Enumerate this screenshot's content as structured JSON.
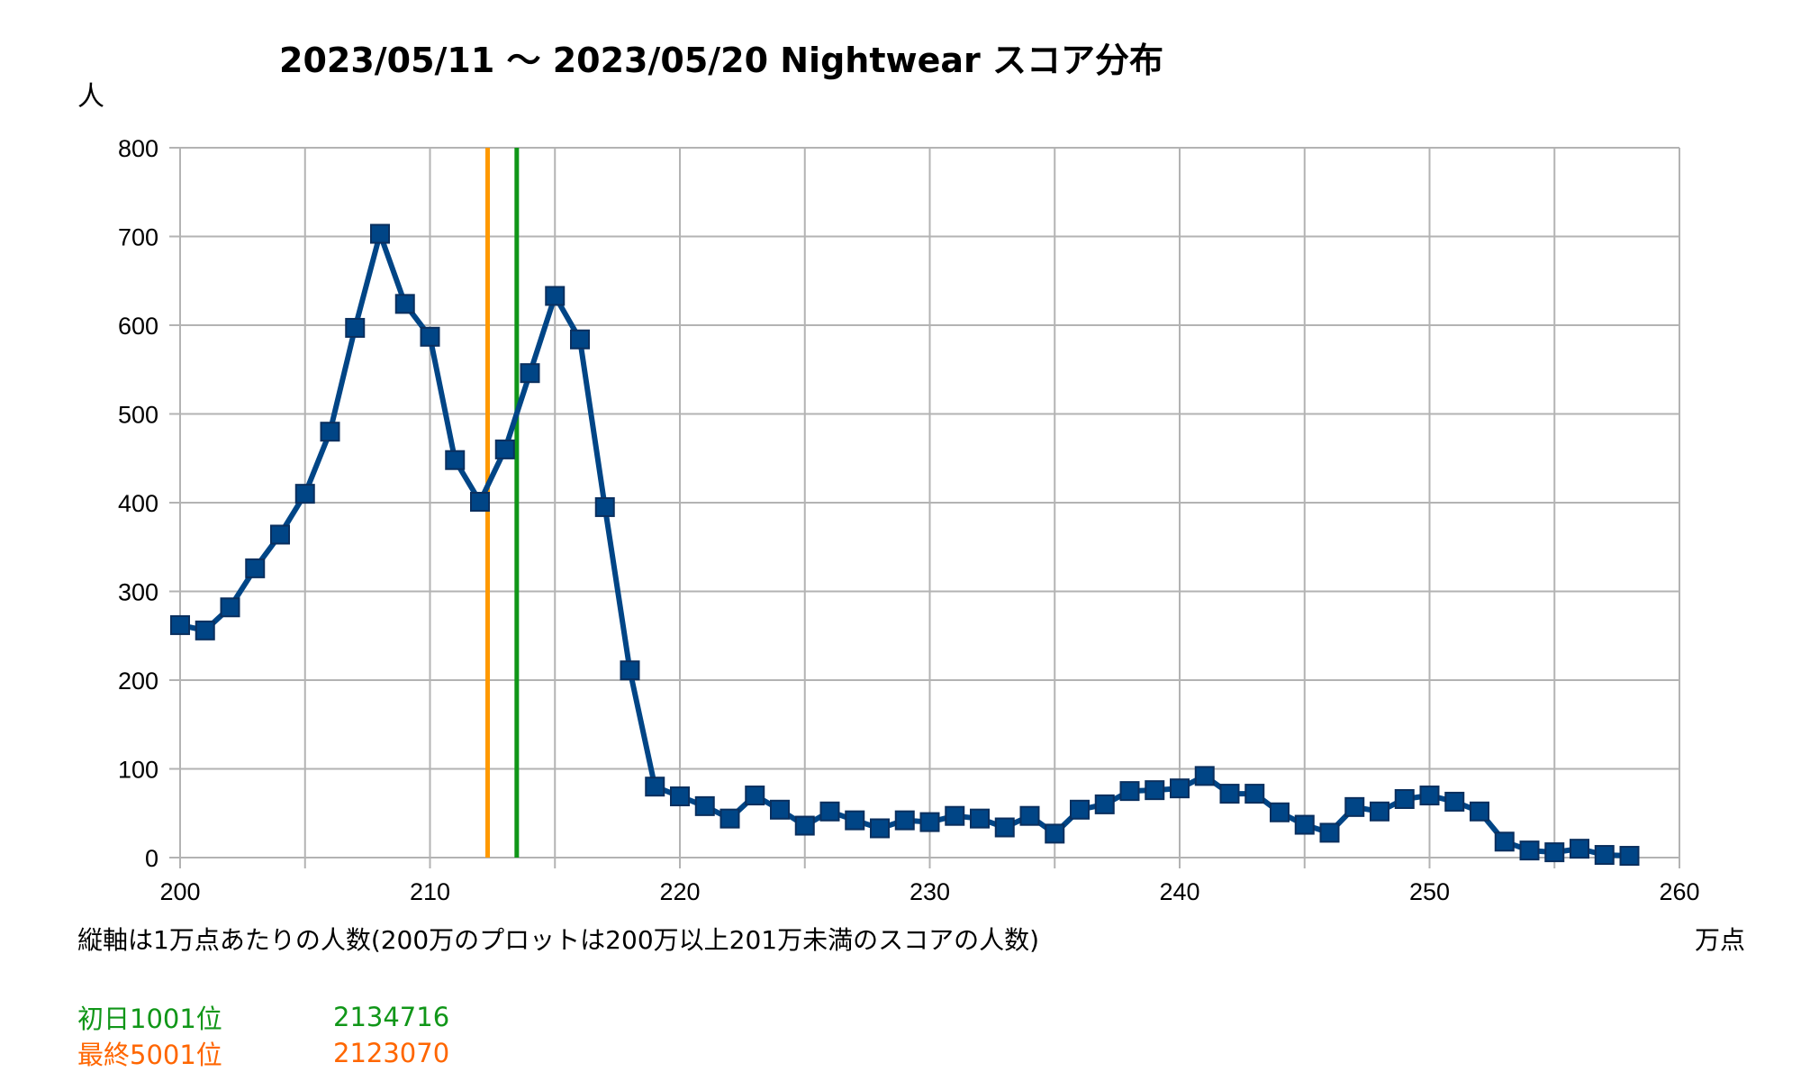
{
  "chart_data": {
    "type": "line",
    "title": "2023/05/11 〜 2023/05/20 Nightwear スコア分布",
    "ylabel": "人",
    "xlabel": "万点",
    "x_note": "縦軸は1万点あたりの人数(200万のプロットは200万以上201万未満のスコアの人数)",
    "xlim": [
      200,
      260
    ],
    "ylim": [
      0,
      800
    ],
    "x_ticks": [
      "200",
      "210",
      "220",
      "230",
      "240",
      "250",
      "260"
    ],
    "y_ticks": [
      "0",
      "100",
      "200",
      "300",
      "400",
      "500",
      "600",
      "700",
      "800"
    ],
    "grid": true,
    "x": [
      200,
      201,
      202,
      203,
      204,
      205,
      206,
      207,
      208,
      209,
      210,
      211,
      212,
      213,
      214,
      215,
      216,
      217,
      218,
      219,
      220,
      221,
      222,
      223,
      224,
      225,
      226,
      227,
      228,
      229,
      230,
      231,
      232,
      233,
      234,
      235,
      236,
      237,
      238,
      239,
      240,
      241,
      242,
      243,
      244,
      245,
      246,
      247,
      248,
      249,
      250,
      251,
      252,
      253,
      254,
      255,
      256,
      257,
      258
    ],
    "series": [
      {
        "color": "#004586",
        "values": [
          262,
          256,
          282,
          326,
          364,
          410,
          480,
          597,
          703,
          624,
          587,
          448,
          401,
          460,
          546,
          633,
          584,
          395,
          211,
          80,
          69,
          58,
          44,
          70,
          54,
          36,
          52,
          42,
          33,
          42,
          40,
          47,
          44,
          34,
          47,
          27,
          54,
          60,
          75,
          76,
          78,
          92,
          72,
          72,
          51,
          37,
          28,
          57,
          52,
          66,
          70,
          63,
          52,
          18,
          8,
          6,
          10,
          3,
          2
        ]
      }
    ],
    "reference_lines": [
      {
        "x": 212.307,
        "color": "#ff9900"
      },
      {
        "x": 213.4716,
        "color": "#109618"
      }
    ],
    "annotations": [
      {
        "label": "初日1001位",
        "value": "2134716",
        "color": "#109618"
      },
      {
        "label": "最終5001位",
        "value": "2123070",
        "color": "#ff6600"
      }
    ]
  }
}
